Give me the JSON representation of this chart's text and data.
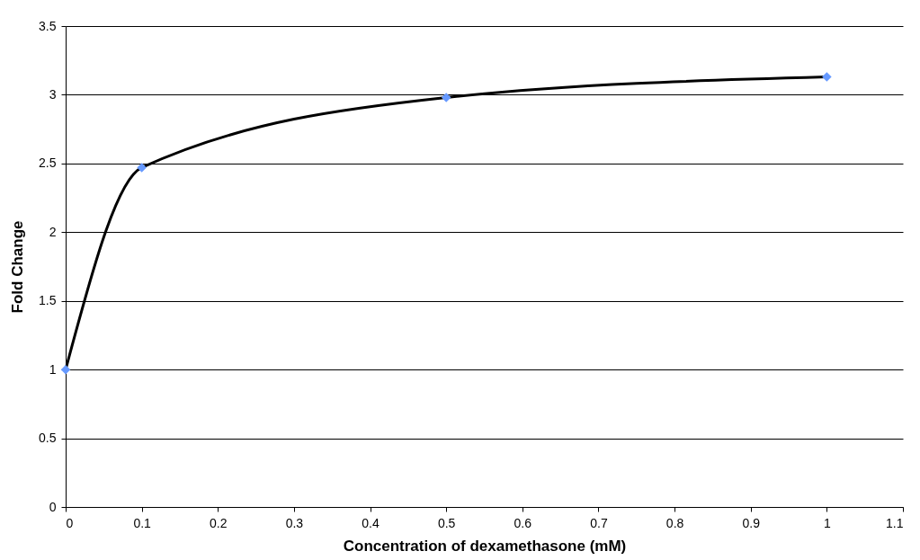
{
  "chart_data": {
    "type": "line",
    "xlabel": "Concentration of dexamethasone (mM)",
    "ylabel": "Fold Change",
    "x": [
      0,
      0.1,
      0.5,
      1
    ],
    "series": [
      {
        "color": "#000000",
        "colors": [
          "#6699ff",
          "#6699ff",
          "#6699ff",
          "#6699ff"
        ],
        "values": [
          1,
          2.47,
          2.98,
          3.13
        ]
      }
    ],
    "xlim": [
      0,
      1.1
    ],
    "xticks": [
      0,
      0.1,
      0.2,
      0.3,
      0.4,
      0.5,
      0.6,
      0.7,
      0.8,
      0.9,
      1,
      1.1
    ],
    "ylim": [
      0,
      3.5
    ],
    "yticks": [
      0,
      0.5,
      1,
      1.5,
      2,
      2.5,
      3,
      3.5
    ],
    "grid": "y",
    "marker": "diamond",
    "line_style": "solid"
  }
}
